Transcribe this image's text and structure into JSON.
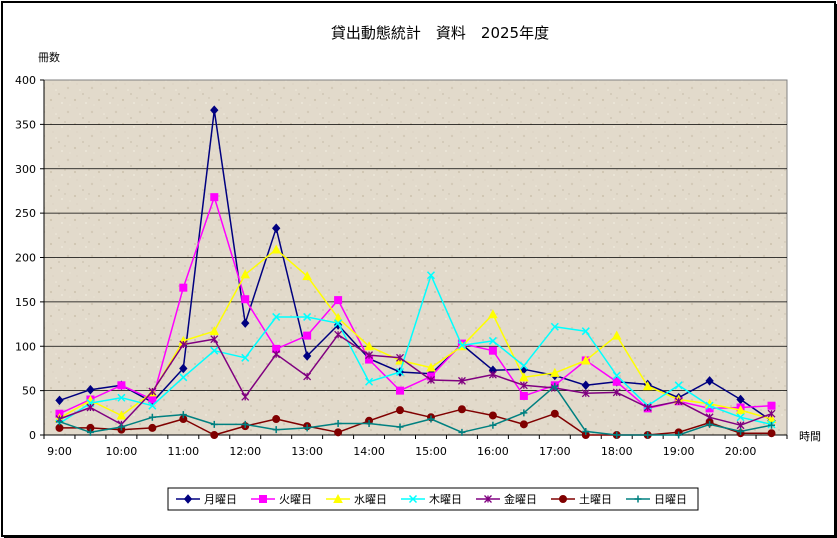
{
  "chart_data": {
    "type": "line",
    "title": "貸出動態統計　資料　2025年度",
    "ylabel": "冊数",
    "xlabel": "時間",
    "ylim": [
      0,
      400
    ],
    "yticks": [
      0,
      50,
      100,
      150,
      200,
      250,
      300,
      350,
      400
    ],
    "x": [
      "9:00",
      "9:30",
      "10:00",
      "10:30",
      "11:00",
      "11:30",
      "12:00",
      "12:30",
      "13:00",
      "13:30",
      "14:00",
      "14:30",
      "15:00",
      "15:30",
      "16:00",
      "16:30",
      "17:00",
      "17:30",
      "18:00",
      "18:30",
      "19:00",
      "19:30",
      "20:00",
      "20:30"
    ],
    "xtick_labels": [
      "9:00",
      "10:00",
      "11:00",
      "12:00",
      "13:00",
      "14:00",
      "15:00",
      "16:00",
      "17:00",
      "18:00",
      "19:00",
      "20:00"
    ],
    "grid": "horizontal",
    "legend_position": "bottom",
    "series": [
      {
        "name": "月曜日",
        "color": "#000080",
        "marker": "diamond",
        "values": [
          39,
          51,
          56,
          37,
          75,
          366,
          126,
          233,
          89,
          124,
          86,
          71,
          69,
          102,
          73,
          74,
          67,
          56,
          60,
          57,
          42,
          61,
          40,
          16
        ]
      },
      {
        "name": "火曜日",
        "color": "#ff00ff",
        "marker": "square",
        "values": [
          24,
          40,
          56,
          40,
          166,
          268,
          153,
          97,
          112,
          152,
          85,
          50,
          66,
          103,
          95,
          44,
          56,
          84,
          60,
          30,
          38,
          30,
          31,
          33
        ]
      },
      {
        "name": "水曜日",
        "color": "#ffff00",
        "marker": "triangle",
        "values": [
          19,
          39,
          22,
          48,
          106,
          117,
          181,
          209,
          179,
          132,
          100,
          84,
          76,
          100,
          136,
          65,
          70,
          84,
          112,
          55,
          40,
          35,
          28,
          18
        ]
      },
      {
        "name": "木曜日",
        "color": "#00ffff",
        "marker": "x",
        "values": [
          13,
          36,
          42,
          33,
          65,
          95,
          87,
          133,
          133,
          126,
          60,
          71,
          180,
          101,
          106,
          78,
          122,
          117,
          67,
          33,
          56,
          33,
          20,
          12
        ]
      },
      {
        "name": "金曜日",
        "color": "#800080",
        "marker": "star",
        "values": [
          18,
          31,
          12,
          49,
          102,
          108,
          43,
          91,
          66,
          113,
          90,
          87,
          62,
          61,
          68,
          56,
          53,
          47,
          48,
          31,
          38,
          20,
          11,
          24
        ]
      },
      {
        "name": "土曜日",
        "color": "#800000",
        "marker": "circle",
        "values": [
          8,
          8,
          6,
          8,
          18,
          0,
          10,
          18,
          10,
          3,
          16,
          28,
          20,
          29,
          22,
          12,
          24,
          0,
          0,
          0,
          3,
          14,
          2,
          2
        ]
      },
      {
        "name": "日曜日",
        "color": "#008080",
        "marker": "plus",
        "values": [
          15,
          3,
          9,
          20,
          23,
          12,
          12,
          6,
          8,
          13,
          13,
          9,
          18,
          3,
          11,
          25,
          55,
          4,
          0,
          0,
          0,
          12,
          4,
          11
        ]
      }
    ]
  }
}
